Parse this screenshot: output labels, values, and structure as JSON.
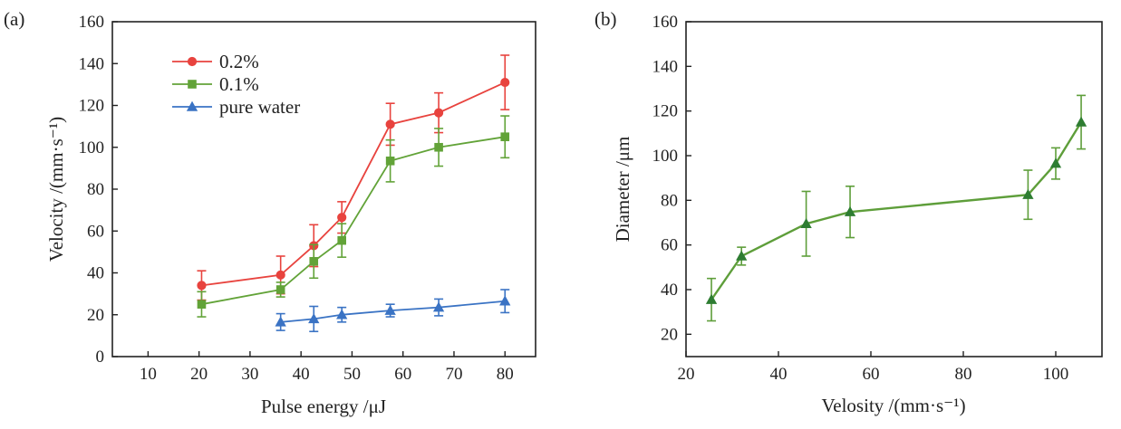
{
  "chart_data": [
    {
      "panel_label": "(a)",
      "type": "line",
      "xlabel": "Pulse energy /μJ",
      "ylabel": "Velocity /(mm·s⁻¹)",
      "xlim": [
        3,
        86
      ],
      "ylim": [
        0,
        160
      ],
      "xticks": [
        10,
        20,
        30,
        40,
        50,
        60,
        70,
        80
      ],
      "yticks": [
        0,
        20,
        40,
        60,
        80,
        100,
        120,
        140,
        160
      ],
      "legend_position": "top-left",
      "grid": false,
      "series": [
        {
          "name": "0.2%",
          "color": "#e8433e",
          "marker": "circle",
          "x": [
            20.5,
            36,
            42.5,
            48,
            57.5,
            67,
            80
          ],
          "y": [
            34,
            39,
            53,
            66.5,
            111,
            116.5,
            131
          ],
          "err": [
            7,
            9,
            10,
            7.5,
            10,
            9.5,
            13
          ]
        },
        {
          "name": "0.1%",
          "color": "#62a338",
          "marker": "square",
          "x": [
            20.5,
            36,
            42.5,
            48,
            57.5,
            67,
            80
          ],
          "y": [
            25,
            32,
            45.5,
            55.5,
            93.5,
            100,
            105
          ],
          "err": [
            6,
            3.5,
            8,
            8,
            10,
            9,
            10
          ]
        },
        {
          "name": "pure water",
          "color": "#3a73c4",
          "marker": "triangle",
          "x": [
            36,
            42.5,
            48,
            57.5,
            67,
            80
          ],
          "y": [
            16.5,
            18,
            20,
            22,
            23.5,
            26.5
          ],
          "err": [
            4,
            6,
            3.5,
            3,
            4,
            5.5
          ]
        }
      ]
    },
    {
      "panel_label": "(b)",
      "type": "line",
      "xlabel": "Velosity /(mm·s⁻¹)",
      "ylabel": "Diameter /μm",
      "xlim": [
        20,
        110
      ],
      "ylim": [
        10,
        160
      ],
      "xticks": [
        20,
        40,
        60,
        80,
        100
      ],
      "yticks": [
        20,
        40,
        60,
        80,
        100,
        120,
        140,
        160
      ],
      "grid": false,
      "series": [
        {
          "color": "#5e9e3a",
          "marker_color": "#2e7d32",
          "marker": "triangle",
          "x": [
            25.5,
            32,
            46,
            55.5,
            94,
            100,
            105.5
          ],
          "y": [
            35.5,
            55,
            69.5,
            74.8,
            82.5,
            96.5,
            115
          ],
          "err": [
            9.5,
            4,
            14.5,
            11.5,
            11,
            7,
            12
          ]
        }
      ]
    }
  ]
}
